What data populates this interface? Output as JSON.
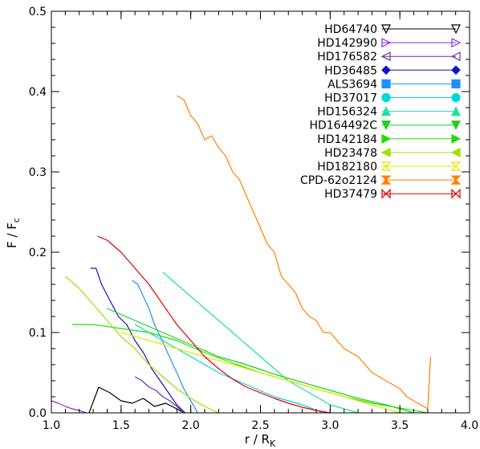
{
  "chart_data": {
    "type": "line",
    "xlabel": "r / R",
    "xlabel_sub": "K",
    "ylabel": "F / F",
    "ylabel_sub": "c",
    "xlim": [
      1.0,
      4.0
    ],
    "ylim": [
      0.0,
      0.5
    ],
    "x_ticks": [
      1.0,
      1.5,
      2.0,
      2.5,
      3.0,
      3.5,
      4.0
    ],
    "x_tick_labels": [
      "1.0",
      "1.5",
      "2.0",
      "2.5",
      "3.0",
      "3.5",
      "4.0"
    ],
    "y_ticks": [
      0.0,
      0.1,
      0.2,
      0.3,
      0.4,
      0.5
    ],
    "y_tick_labels": [
      "0.0",
      "0.1",
      "0.2",
      "0.3",
      "0.4",
      "0.5"
    ],
    "grid": false,
    "legend_position": "top-right",
    "series": [
      {
        "name": "HD64740",
        "color": "#000000",
        "marker": "triangle-down-open",
        "x": [
          1.27,
          1.34,
          1.42,
          1.5,
          1.58,
          1.66,
          1.74,
          1.82,
          1.9,
          1.95
        ],
        "y": [
          0.0,
          0.032,
          0.025,
          0.015,
          0.012,
          0.018,
          0.008,
          0.012,
          0.005,
          0.0
        ]
      },
      {
        "name": "HD142990",
        "color": "#8B2BE2",
        "marker": "triangle-right-open",
        "x": [
          1.0,
          1.05,
          1.1,
          1.15,
          1.2,
          1.25
        ],
        "y": [
          0.015,
          0.012,
          0.008,
          0.005,
          0.003,
          0.0
        ]
      },
      {
        "name": "HD176582",
        "color": "#7030A0",
        "marker": "triangle-left-open",
        "x": [
          1.6,
          1.65,
          1.7,
          1.75,
          1.8,
          1.85,
          1.9,
          1.95
        ],
        "y": [
          0.045,
          0.04,
          0.032,
          0.028,
          0.02,
          0.015,
          0.008,
          0.0
        ]
      },
      {
        "name": "HD36485",
        "color": "#1010D0",
        "marker": "diamond-filled",
        "x": [
          1.28,
          1.32,
          1.36,
          1.42,
          1.48,
          1.54,
          1.6,
          1.66,
          1.72,
          1.78,
          1.84,
          1.9,
          1.96
        ],
        "y": [
          0.18,
          0.18,
          0.16,
          0.14,
          0.12,
          0.11,
          0.09,
          0.075,
          0.055,
          0.04,
          0.025,
          0.01,
          0.0
        ]
      },
      {
        "name": "ALS3694",
        "color": "#1E90FF",
        "marker": "square-filled",
        "x": [
          1.58,
          1.62,
          1.66,
          1.7,
          1.74,
          1.78,
          1.82,
          1.86,
          1.9,
          1.95,
          2.0,
          2.05
        ],
        "y": [
          0.165,
          0.16,
          0.145,
          0.13,
          0.11,
          0.095,
          0.08,
          0.065,
          0.05,
          0.03,
          0.015,
          0.0
        ]
      },
      {
        "name": "HD37017",
        "color": "#00D8D8",
        "marker": "circle-filled",
        "x": [
          1.6,
          1.8,
          2.0,
          2.2,
          2.4,
          2.6,
          2.8,
          2.95
        ],
        "y": [
          0.11,
          0.09,
          0.07,
          0.05,
          0.035,
          0.02,
          0.01,
          0.0
        ]
      },
      {
        "name": "HD156324",
        "color": "#20E0A0",
        "marker": "triangle-up-filled",
        "x": [
          1.8,
          1.9,
          2.0,
          2.1,
          2.2,
          2.3,
          2.4,
          2.5,
          2.6,
          2.7,
          2.8,
          2.9,
          3.0,
          3.1,
          3.2
        ],
        "y": [
          0.175,
          0.16,
          0.145,
          0.13,
          0.115,
          0.1,
          0.085,
          0.07,
          0.055,
          0.04,
          0.03,
          0.02,
          0.01,
          0.005,
          0.0
        ]
      },
      {
        "name": "HD164492C",
        "color": "#20D020",
        "marker": "triangle-down-filled",
        "x": [
          1.4,
          1.6,
          1.8,
          2.0,
          2.2,
          2.4,
          2.6,
          2.8,
          3.0,
          3.2,
          3.4,
          3.6
        ],
        "y": [
          0.13,
          0.115,
          0.1,
          0.085,
          0.07,
          0.06,
          0.048,
          0.038,
          0.028,
          0.018,
          0.01,
          0.0
        ]
      },
      {
        "name": "HD142184",
        "color": "#22DD00",
        "marker": "triangle-right-filled",
        "x": [
          1.15,
          1.3,
          1.5,
          1.7,
          1.9,
          2.1,
          2.3,
          2.5,
          2.7,
          2.9,
          3.1,
          3.3,
          3.5,
          3.7
        ],
        "y": [
          0.11,
          0.11,
          0.105,
          0.1,
          0.09,
          0.075,
          0.062,
          0.05,
          0.04,
          0.03,
          0.02,
          0.012,
          0.006,
          0.0
        ]
      },
      {
        "name": "HD23478",
        "color": "#A0E000",
        "marker": "triangle-left-filled",
        "x": [
          1.1,
          1.2,
          1.3,
          1.4,
          1.5,
          1.6,
          1.7,
          1.8,
          1.9,
          2.0,
          2.1,
          2.2
        ],
        "y": [
          0.17,
          0.155,
          0.135,
          0.115,
          0.095,
          0.08,
          0.06,
          0.045,
          0.03,
          0.018,
          0.008,
          0.0
        ]
      },
      {
        "name": "HD182180",
        "color": "#E8E800",
        "marker": "hourglass-open",
        "x": [
          1.5,
          1.7,
          1.9,
          2.1,
          2.3,
          2.5,
          2.7,
          2.9,
          3.1,
          3.3,
          3.5
        ],
        "y": [
          0.1,
          0.09,
          0.08,
          0.07,
          0.06,
          0.05,
          0.04,
          0.03,
          0.02,
          0.01,
          0.0
        ]
      },
      {
        "name": "CPD-62o2124",
        "color": "#FF8000",
        "marker": "hourglass-filled",
        "x": [
          1.9,
          1.95,
          2.0,
          2.05,
          2.1,
          2.15,
          2.2,
          2.25,
          2.3,
          2.35,
          2.4,
          2.45,
          2.5,
          2.55,
          2.6,
          2.65,
          2.7,
          2.75,
          2.8,
          2.85,
          2.9,
          2.95,
          3.0,
          3.05,
          3.1,
          3.15,
          3.2,
          3.25,
          3.3,
          3.35,
          3.4,
          3.45,
          3.5,
          3.55,
          3.6,
          3.65,
          3.7,
          3.72
        ],
        "y": [
          0.395,
          0.39,
          0.37,
          0.36,
          0.34,
          0.345,
          0.33,
          0.32,
          0.3,
          0.29,
          0.27,
          0.25,
          0.23,
          0.21,
          0.2,
          0.17,
          0.16,
          0.15,
          0.13,
          0.12,
          0.115,
          0.1,
          0.1,
          0.09,
          0.08,
          0.075,
          0.07,
          0.06,
          0.05,
          0.045,
          0.04,
          0.035,
          0.03,
          0.02,
          0.015,
          0.01,
          0.005,
          0.07
        ]
      },
      {
        "name": "HD37479",
        "color": "#E00000",
        "marker": "bowtie-open",
        "x": [
          1.33,
          1.4,
          1.5,
          1.6,
          1.7,
          1.8,
          1.9,
          2.0,
          2.1,
          2.2,
          2.3,
          2.4,
          2.5,
          2.6,
          2.7,
          2.8,
          2.9,
          3.0
        ],
        "y": [
          0.22,
          0.215,
          0.2,
          0.18,
          0.16,
          0.135,
          0.11,
          0.09,
          0.07,
          0.055,
          0.042,
          0.032,
          0.025,
          0.018,
          0.012,
          0.007,
          0.003,
          0.0
        ]
      }
    ]
  }
}
